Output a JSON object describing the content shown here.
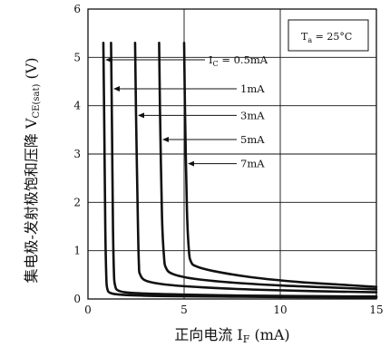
{
  "chart_data": {
    "type": "line",
    "xlabel_main": "正向电流 I",
    "xlabel_sub": "F",
    "xlabel_unit": " (mA)",
    "ylabel_main": "集电极-发射极饱和压降 V",
    "ylabel_sub": "CE(sat)",
    "ylabel_unit": " (V)",
    "xlim": [
      0,
      15
    ],
    "ylim": [
      0,
      6
    ],
    "x_ticks": [
      0,
      5,
      10,
      15
    ],
    "y_ticks": [
      0,
      1,
      2,
      3,
      4,
      5,
      6
    ],
    "x_tick_labels": [
      "0",
      "5",
      "10",
      "15"
    ],
    "y_tick_labels": [
      "0",
      "1",
      "2",
      "3",
      "4",
      "5",
      "6"
    ],
    "grid": true,
    "condition": {
      "main": "T",
      "sub": "a",
      "rest": " = 25°C"
    },
    "series": [
      {
        "label": "I_C = 0.5mA",
        "label_prefix": "I",
        "label_sub": "C",
        "label_rest": " = 0.5mA",
        "x": [
          0.8,
          0.85,
          0.9,
          0.95,
          1.0,
          1.2,
          2.0,
          4.0,
          7.0,
          10.0,
          15.0
        ],
        "y": [
          5.3,
          3.5,
          1.5,
          0.5,
          0.22,
          0.12,
          0.08,
          0.06,
          0.05,
          0.04,
          0.03
        ]
      },
      {
        "label": "1mA",
        "x": [
          1.2,
          1.25,
          1.3,
          1.35,
          1.4,
          1.6,
          2.5,
          5.0,
          8.0,
          11.0,
          15.0
        ],
        "y": [
          5.3,
          3.5,
          1.5,
          0.55,
          0.3,
          0.17,
          0.12,
          0.09,
          0.07,
          0.06,
          0.05
        ]
      },
      {
        "label": "3mA",
        "x": [
          2.45,
          2.5,
          2.6,
          2.65,
          2.7,
          3.0,
          4.0,
          6.0,
          9.0,
          12.0,
          15.0
        ],
        "y": [
          5.3,
          3.8,
          1.5,
          0.7,
          0.52,
          0.38,
          0.3,
          0.24,
          0.19,
          0.16,
          0.14
        ]
      },
      {
        "label": "5mA",
        "x": [
          3.7,
          3.75,
          3.85,
          3.95,
          4.05,
          4.4,
          5.5,
          7.5,
          10.0,
          12.5,
          15.0
        ],
        "y": [
          5.3,
          3.8,
          1.7,
          0.9,
          0.65,
          0.52,
          0.42,
          0.34,
          0.28,
          0.24,
          0.2
        ]
      },
      {
        "label": "7mA",
        "x": [
          5.0,
          5.05,
          5.15,
          5.25,
          5.35,
          5.6,
          6.5,
          8.5,
          11.0,
          13.0,
          15.0
        ],
        "y": [
          5.3,
          3.8,
          1.8,
          1.0,
          0.78,
          0.68,
          0.58,
          0.45,
          0.35,
          0.3,
          0.25
        ]
      }
    ]
  }
}
